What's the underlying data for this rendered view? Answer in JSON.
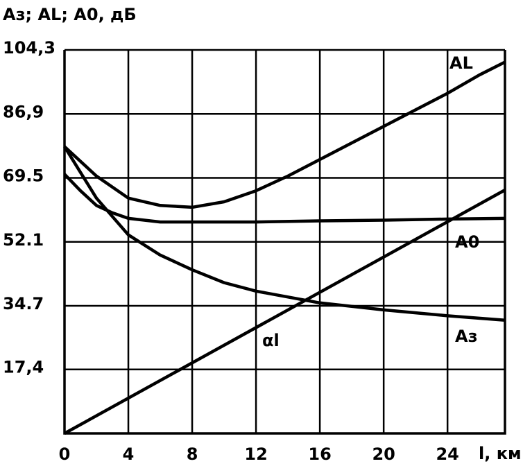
{
  "chart_data": {
    "type": "line",
    "title": "Aз; AL; A0, дБ",
    "x_label": "l, км",
    "xlim": [
      0,
      27.6
    ],
    "xticks": [
      0,
      4,
      8,
      12,
      16,
      20,
      24
    ],
    "ylim": [
      0,
      104.3
    ],
    "yticks": [
      {
        "value": 17.4,
        "label": "17,4"
      },
      {
        "value": 34.7,
        "label": "34.7"
      },
      {
        "value": 52.1,
        "label": "52.1"
      },
      {
        "value": 69.5,
        "label": "69.5"
      },
      {
        "value": 86.9,
        "label": "86,9"
      },
      {
        "value": 104.3,
        "label": "104,3"
      }
    ],
    "grid": true,
    "series": [
      {
        "name": "AL",
        "color": "#000000",
        "x": [
          0,
          2,
          4,
          6,
          8,
          10,
          12,
          14,
          16,
          18,
          20,
          22,
          24,
          26,
          27.6
        ],
        "values": [
          78,
          70,
          64,
          62,
          61.5,
          63,
          66,
          70,
          74.5,
          79,
          83.5,
          88,
          92.5,
          97.5,
          101
        ]
      },
      {
        "name": "A0",
        "color": "#000000",
        "x": [
          0,
          1,
          2,
          3,
          4,
          6,
          8,
          12,
          16,
          20,
          24,
          27.6
        ],
        "values": [
          70.5,
          66,
          62,
          60,
          58.5,
          57.5,
          57.5,
          57.5,
          57.8,
          58,
          58.3,
          58.5
        ]
      },
      {
        "name": "Aз",
        "color": "#000000",
        "x": [
          0,
          2,
          4,
          6,
          8,
          10,
          12,
          16,
          20,
          24,
          27.6
        ],
        "values": [
          78,
          64,
          54,
          48.5,
          44.5,
          41,
          38.7,
          35.5,
          33.6,
          32,
          30.8
        ]
      },
      {
        "name": "αl",
        "color": "#000000",
        "x": [
          0,
          27.6
        ],
        "values": [
          0,
          66.2
        ]
      }
    ]
  }
}
